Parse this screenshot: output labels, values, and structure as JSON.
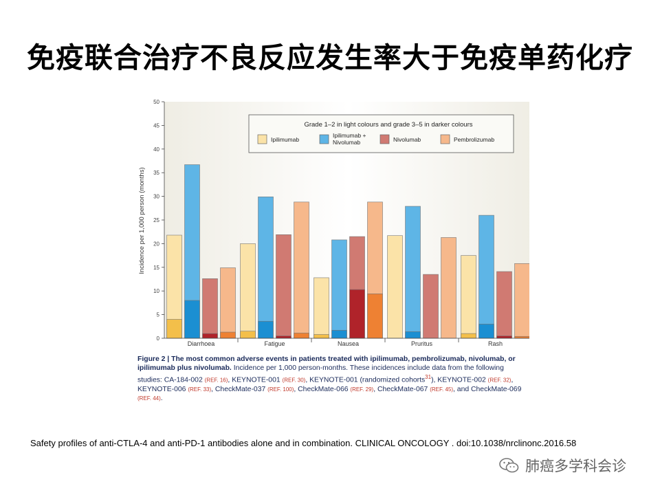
{
  "slide": {
    "title": "免疫联合治疗不良反应发生率大于免疫单药化疗",
    "citation": "Safety profiles  of anti-CTLA-4 and anti-PD-1 antibodies  alone and in combination.  CLINICAL ONCOLOGY . doi:10.1038/nrclinonc.2016.58",
    "brand": "肺癌多学科会诊"
  },
  "caption": {
    "lead": "Figure 2 | The most common adverse events in patients treated with ipilimumab, pembrolizumab, nivolumab, or ipilimumab plus nivolumab.",
    "p1": " Incidence per 1,000 person-months. These incidences include data from the following studies: CA-184-002 ",
    "r1": "(REF. 16)",
    "p2": ", KEYNOTE-001 ",
    "r2": "(REF. 30)",
    "p3": ", KEYNOTE-001 (randomized cohorts",
    "r3": "31",
    "p4": "), KEYNOTE-002 ",
    "r4": "(REF. 32)",
    "p5": ", KEYNOTE-006 ",
    "r5": "(REF. 33)",
    "p6": ", CheckMate-037 ",
    "r6": "(REF. 100)",
    "p7": ", CheckMate-066 ",
    "r7": "(REF. 29)",
    "p8": ", CheckMate-067 ",
    "r8": "(REF. 45)",
    "p9": ", and CheckMate-069 ",
    "r9": "(REF. 44)",
    "p10": "."
  },
  "chart_data": {
    "type": "bar",
    "ylabel": "Incidence per 1,000 person (months)",
    "ylim": [
      0,
      50
    ],
    "yticks": [
      "0",
      "5",
      "10",
      "15",
      "20",
      "25",
      "30",
      "35",
      "40",
      "45",
      "50"
    ],
    "legend_title": "Grade 1–2 in light colours and grade 3–5 in darker colours",
    "legend_position": "top-right",
    "categories": [
      "Diarrhoea",
      "Fatigue",
      "Nausea",
      "Pruritus",
      "Rash"
    ],
    "series": [
      {
        "name": "Ipilimumab",
        "total": [
          21.8,
          20.0,
          12.8,
          21.7,
          17.5
        ],
        "grade3_5": [
          4.0,
          1.5,
          0.8,
          0,
          1.0
        ],
        "light": "#fbe3a8",
        "dark": "#f3bf4a"
      },
      {
        "name": "Ipilimumab + Nivolumab",
        "total": [
          36.7,
          29.9,
          20.8,
          27.9,
          26.0
        ],
        "grade3_5": [
          8.0,
          3.6,
          1.7,
          1.4,
          3.0
        ],
        "light": "#5eb5e6",
        "dark": "#1b8fd2"
      },
      {
        "name": "Nivolumab",
        "total": [
          12.6,
          21.9,
          21.5,
          13.5,
          14.1
        ],
        "grade3_5": [
          1.0,
          0.5,
          10.3,
          0,
          0.5
        ],
        "light": "#d07a72",
        "dark": "#b0232a"
      },
      {
        "name": "Pembrolizumab",
        "total": [
          14.9,
          28.8,
          28.8,
          21.3,
          15.8
        ],
        "grade3_5": [
          1.3,
          1.1,
          9.4,
          0,
          0.4
        ],
        "light": "#f6b88b",
        "dark": "#ee8133"
      }
    ]
  }
}
